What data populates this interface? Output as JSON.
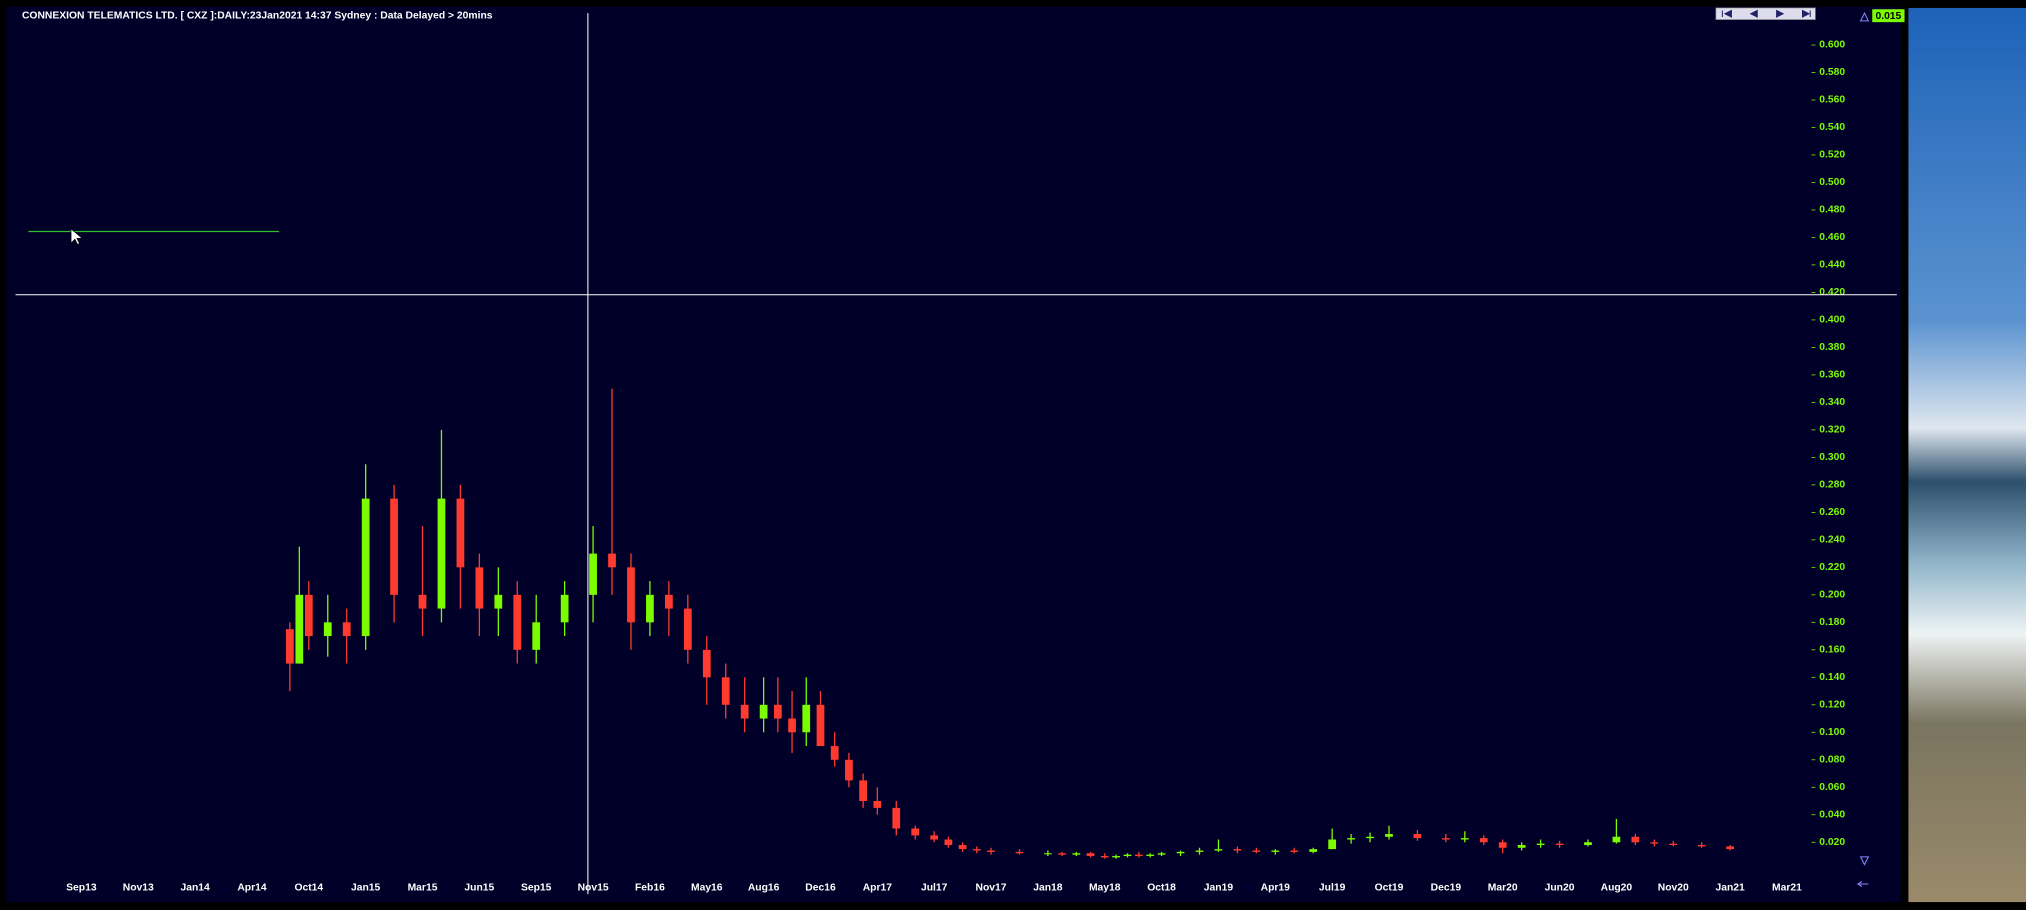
{
  "chart_data": {
    "type": "candlestick",
    "title": "CONNEXION TELEMATICS LTD. [ CXZ ]:DAILY:23Jan2021 14:37 Sydney : Data Delayed > 20mins",
    "last_price": "0.015",
    "up_color": "#7cfc00",
    "down_color": "#ff3b2f",
    "xticks": [
      "Sep13",
      "Nov13",
      "Jan14",
      "Apr14",
      "Oct14",
      "Jan15",
      "Mar15",
      "Jun15",
      "Sep15",
      "Nov15",
      "Feb16",
      "May16",
      "Aug16",
      "Dec16",
      "Apr17",
      "Jul17",
      "Nov17",
      "Jan18",
      "May18",
      "Oct18",
      "Jan19",
      "Apr19",
      "Jul19",
      "Oct19",
      "Dec19",
      "Mar20",
      "Jun20",
      "Aug20",
      "Nov20",
      "Jan21",
      "Mar21"
    ],
    "ylim": [
      0,
      0.62
    ],
    "yticks": [
      {
        "value": 0.02,
        "label": "0.020"
      },
      {
        "value": 0.04,
        "label": "0.040"
      },
      {
        "value": 0.06,
        "label": "0.060"
      },
      {
        "value": 0.08,
        "label": "0.080"
      },
      {
        "value": 0.1,
        "label": "0.100"
      },
      {
        "value": 0.12,
        "label": "0.120"
      },
      {
        "value": 0.14,
        "label": "0.140"
      },
      {
        "value": 0.16,
        "label": "0.160"
      },
      {
        "value": 0.18,
        "label": "0.180"
      },
      {
        "value": 0.2,
        "label": "0.200"
      },
      {
        "value": 0.22,
        "label": "0.220"
      },
      {
        "value": 0.24,
        "label": "0.240"
      },
      {
        "value": 0.26,
        "label": "0.260"
      },
      {
        "value": 0.28,
        "label": "0.280"
      },
      {
        "value": 0.3,
        "label": "0.300"
      },
      {
        "value": 0.32,
        "label": "0.320"
      },
      {
        "value": 0.34,
        "label": "0.340"
      },
      {
        "value": 0.36,
        "label": "0.360"
      },
      {
        "value": 0.38,
        "label": "0.380"
      },
      {
        "value": 0.4,
        "label": "0.400"
      },
      {
        "value": 0.42,
        "label": "0.420"
      },
      {
        "value": 0.44,
        "label": "0.440"
      },
      {
        "value": 0.46,
        "label": "0.460"
      },
      {
        "value": 0.48,
        "label": "0.480"
      },
      {
        "value": 0.5,
        "label": "0.500"
      },
      {
        "value": 0.52,
        "label": "0.520"
      },
      {
        "value": 0.54,
        "label": "0.540"
      },
      {
        "value": 0.56,
        "label": "0.560"
      },
      {
        "value": 0.58,
        "label": "0.580"
      },
      {
        "value": 0.6,
        "label": "0.600"
      }
    ],
    "x": [
      "Aug14",
      "Sep14",
      "Oct14",
      "Nov14",
      "Dec14",
      "Jan15",
      "Feb15",
      "Mar15",
      "Apr15",
      "May15",
      "Jun15",
      "Jul15",
      "Aug15",
      "Sep15",
      "Oct15",
      "Nov15",
      "Dec15",
      "Jan16",
      "Feb16",
      "Mar16",
      "Apr16",
      "May16",
      "Jun16",
      "Jul16",
      "Aug16",
      "Sep16",
      "Oct16",
      "Nov16",
      "Dec16",
      "Jan17",
      "Feb17",
      "Mar17",
      "Apr17",
      "May17",
      "Jun17",
      "Jul17",
      "Aug17",
      "Sep17",
      "Oct17",
      "Nov17",
      "Dec17",
      "Jan18",
      "Feb18",
      "Mar18",
      "Apr18",
      "May18",
      "Jun18",
      "Jul18",
      "Aug18",
      "Sep18",
      "Oct18",
      "Nov18",
      "Dec18",
      "Jan19",
      "Feb19",
      "Mar19",
      "Apr19",
      "May19",
      "Jun19",
      "Jul19",
      "Aug19",
      "Sep19",
      "Oct19",
      "Nov19",
      "Dec19",
      "Jan20",
      "Feb20",
      "Mar20",
      "Apr20",
      "May20",
      "Jun20",
      "Jul20",
      "Aug20",
      "Sep20",
      "Oct20",
      "Nov20",
      "Dec20",
      "Jan21"
    ],
    "open": [
      0.175,
      0.15,
      0.2,
      0.17,
      0.18,
      0.17,
      0.27,
      0.2,
      0.19,
      0.27,
      0.22,
      0.19,
      0.2,
      0.16,
      0.18,
      0.2,
      0.23,
      0.22,
      0.18,
      0.2,
      0.19,
      0.16,
      0.14,
      0.12,
      0.11,
      0.12,
      0.11,
      0.1,
      0.12,
      0.09,
      0.08,
      0.065,
      0.05,
      0.045,
      0.03,
      0.025,
      0.022,
      0.018,
      0.015,
      0.014,
      0.013,
      0.012,
      0.012,
      0.011,
      0.012,
      0.01,
      0.009,
      0.01,
      0.011,
      0.01,
      0.011,
      0.012,
      0.013,
      0.014,
      0.015,
      0.014,
      0.013,
      0.014,
      0.013,
      0.015,
      0.022,
      0.023,
      0.024,
      0.026,
      0.023,
      0.022,
      0.023,
      0.02,
      0.016,
      0.018,
      0.019,
      0.018,
      0.02,
      0.024,
      0.02,
      0.019,
      0.018,
      0.017
    ],
    "high": [
      0.18,
      0.235,
      0.21,
      0.2,
      0.19,
      0.295,
      0.28,
      0.25,
      0.32,
      0.28,
      0.23,
      0.22,
      0.21,
      0.2,
      0.21,
      0.25,
      0.35,
      0.23,
      0.21,
      0.21,
      0.2,
      0.17,
      0.15,
      0.14,
      0.14,
      0.14,
      0.13,
      0.14,
      0.13,
      0.1,
      0.085,
      0.07,
      0.06,
      0.05,
      0.032,
      0.028,
      0.024,
      0.02,
      0.017,
      0.016,
      0.015,
      0.014,
      0.013,
      0.013,
      0.013,
      0.012,
      0.011,
      0.012,
      0.013,
      0.012,
      0.013,
      0.014,
      0.016,
      0.022,
      0.017,
      0.016,
      0.015,
      0.016,
      0.016,
      0.03,
      0.026,
      0.027,
      0.032,
      0.029,
      0.026,
      0.028,
      0.025,
      0.022,
      0.02,
      0.022,
      0.021,
      0.022,
      0.037,
      0.026,
      0.022,
      0.021,
      0.02,
      0.018
    ],
    "low": [
      0.13,
      0.15,
      0.16,
      0.155,
      0.15,
      0.16,
      0.18,
      0.17,
      0.18,
      0.19,
      0.17,
      0.17,
      0.15,
      0.15,
      0.17,
      0.18,
      0.2,
      0.16,
      0.17,
      0.17,
      0.15,
      0.12,
      0.11,
      0.1,
      0.1,
      0.1,
      0.085,
      0.09,
      0.09,
      0.075,
      0.06,
      0.045,
      0.04,
      0.025,
      0.022,
      0.02,
      0.016,
      0.013,
      0.012,
      0.011,
      0.011,
      0.01,
      0.01,
      0.01,
      0.009,
      0.008,
      0.008,
      0.009,
      0.009,
      0.009,
      0.01,
      0.01,
      0.011,
      0.013,
      0.012,
      0.012,
      0.011,
      0.012,
      0.012,
      0.015,
      0.019,
      0.02,
      0.022,
      0.021,
      0.02,
      0.02,
      0.018,
      0.012,
      0.014,
      0.016,
      0.016,
      0.017,
      0.019,
      0.018,
      0.017,
      0.017,
      0.016,
      0.014
    ],
    "close": [
      0.15,
      0.2,
      0.17,
      0.18,
      0.17,
      0.27,
      0.2,
      0.19,
      0.27,
      0.22,
      0.19,
      0.2,
      0.16,
      0.18,
      0.2,
      0.23,
      0.22,
      0.18,
      0.2,
      0.19,
      0.16,
      0.14,
      0.12,
      0.11,
      0.12,
      0.11,
      0.1,
      0.12,
      0.09,
      0.08,
      0.065,
      0.05,
      0.045,
      0.03,
      0.025,
      0.022,
      0.018,
      0.015,
      0.014,
      0.013,
      0.012,
      0.012,
      0.011,
      0.012,
      0.01,
      0.009,
      0.01,
      0.011,
      0.01,
      0.011,
      0.012,
      0.013,
      0.014,
      0.015,
      0.014,
      0.013,
      0.014,
      0.013,
      0.015,
      0.022,
      0.023,
      0.024,
      0.026,
      0.023,
      0.022,
      0.023,
      0.02,
      0.016,
      0.018,
      0.019,
      0.018,
      0.02,
      0.024,
      0.02,
      0.019,
      0.018,
      0.017,
      0.015
    ]
  }
}
